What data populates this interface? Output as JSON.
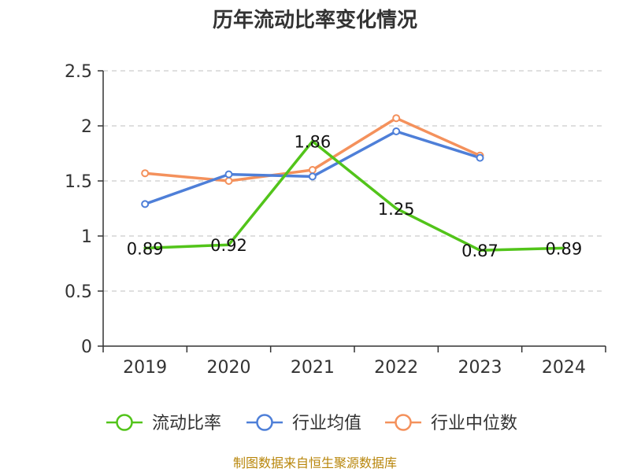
{
  "chart_data": {
    "type": "line",
    "title": "历年流动比率变化情况",
    "categories": [
      "2019",
      "2020",
      "2021",
      "2022",
      "2023",
      "2024"
    ],
    "ylim": [
      0,
      2.5
    ],
    "yticks": [
      "0",
      "0.5",
      "1",
      "1.5",
      "2",
      "2.5"
    ],
    "grid": true,
    "legend_position": "bottom",
    "series": [
      {
        "name": "流动比率",
        "color": "#52c41a",
        "values": [
          0.89,
          0.92,
          1.86,
          1.25,
          0.87,
          0.89
        ],
        "labels": [
          "0.89",
          "0.92",
          "1.86",
          "1.25",
          "0.87",
          "0.89"
        ]
      },
      {
        "name": "行业均值",
        "color": "#4e7fd8",
        "values": [
          1.29,
          1.56,
          1.54,
          1.95,
          1.71,
          null
        ]
      },
      {
        "name": "行业中位数",
        "color": "#f4915c",
        "values": [
          1.57,
          1.5,
          1.6,
          2.07,
          1.73,
          null
        ]
      }
    ]
  },
  "source": "制图数据来自恒生聚源数据库"
}
